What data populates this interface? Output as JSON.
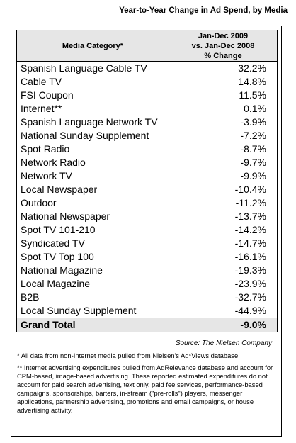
{
  "title": "Year-to-Year Change in Ad Spend, by Media",
  "chart_data": {
    "type": "table",
    "title": "Year-to-Year Change in Ad Spend, by Media",
    "columns": [
      "Media Category*",
      "Jan-Dec 2009 vs. Jan-Dec 2008 % Change"
    ],
    "header": {
      "category": "Media Category*",
      "change_line1": "Jan-Dec 2009",
      "change_line2": "vs. Jan-Dec 2008",
      "change_line3": "% Change"
    },
    "rows": [
      {
        "category": "Spanish Language Cable TV",
        "change": "32.2%"
      },
      {
        "category": "Cable TV",
        "change": "14.8%"
      },
      {
        "category": "FSI Coupon",
        "change": "11.5%"
      },
      {
        "category": "Internet**",
        "change": "0.1%"
      },
      {
        "category": "Spanish Language Network TV",
        "change": "-3.9%"
      },
      {
        "category": "National Sunday Supplement",
        "change": "-7.2%"
      },
      {
        "category": "Spot Radio",
        "change": "-8.7%"
      },
      {
        "category": "Network Radio",
        "change": "-9.7%"
      },
      {
        "category": "Network TV",
        "change": "-9.9%"
      },
      {
        "category": "Local Newspaper",
        "change": "-10.4%"
      },
      {
        "category": "Outdoor",
        "change": "-11.2%"
      },
      {
        "category": "National Newspaper",
        "change": "-13.7%"
      },
      {
        "category": "Spot TV 101-210",
        "change": "-14.2%"
      },
      {
        "category": "Syndicated TV",
        "change": "-14.7%"
      },
      {
        "category": "Spot TV Top 100",
        "change": "-16.1%"
      },
      {
        "category": "National Magazine",
        "change": "-19.3%"
      },
      {
        "category": "Local Magazine",
        "change": "-23.9%"
      },
      {
        "category": "B2B",
        "change": "-32.7%"
      },
      {
        "category": "Local Sunday Supplement",
        "change": "-44.9%"
      }
    ],
    "total": {
      "category": "Grand Total",
      "change": "-9.0%"
    }
  },
  "source": "Source: The Nielsen Company",
  "notes": [
    "* All data from non-Internet media pulled from Nielsen's Ad*Views database",
    "** Internet advertising expenditures pulled from AdRelevance database and account for CPM-based, image-based advertising. These reported estimated expenditures do not account for paid search advertising, text only, paid fee services, performance-based campaigns, sponsorships, barters, in-stream (\"pre-rolls\") players, messenger applications, partnership advertising, promotions and email campaigns, or house advertising activity."
  ]
}
